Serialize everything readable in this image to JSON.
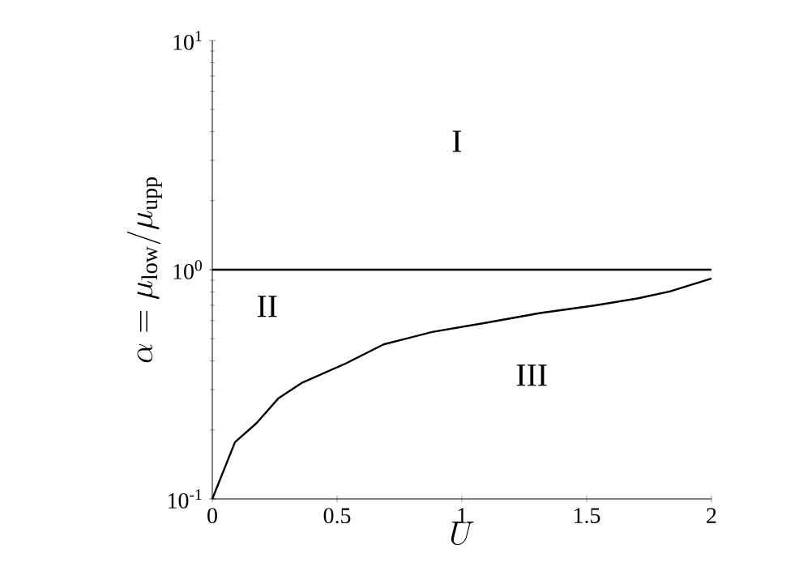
{
  "chart_data": {
    "type": "line",
    "xlabel": "U",
    "ylabel": "\\alpha = \\mu_{\\mathrm{low}}/\\mu_{\\mathrm{upp}}",
    "log": "y",
    "xlim": [
      0,
      2
    ],
    "ylim": [
      0.1,
      10
    ],
    "xticks": [
      0,
      0.5,
      1,
      1.5,
      2
    ],
    "yticks": [
      {
        "value": 0.1,
        "label": "10$^{-1}$"
      },
      {
        "value": 1,
        "label": "10$^{0}$"
      },
      {
        "value": 10,
        "label": "10$^{1}$"
      }
    ],
    "series": [
      {
        "color": "#000000",
        "x": [
          0,
          0.091,
          0.177,
          0.264,
          0.361,
          0.535,
          0.686,
          0.881,
          1.097,
          1.314,
          1.53,
          1.703,
          1.833,
          2
        ],
        "values": [
          0.1,
          0.177,
          0.214,
          0.274,
          0.322,
          0.39,
          0.472,
          0.535,
          0.587,
          0.647,
          0.698,
          0.749,
          0.804,
          0.916
        ]
      }
    ],
    "ref_lines": [
      {
        "axis": "y",
        "value": 1,
        "color": "#000000"
      }
    ],
    "annotations": [
      "I",
      "II",
      "III"
    ],
    "grid": false,
    "marker": "none",
    "line_style": "solid"
  }
}
